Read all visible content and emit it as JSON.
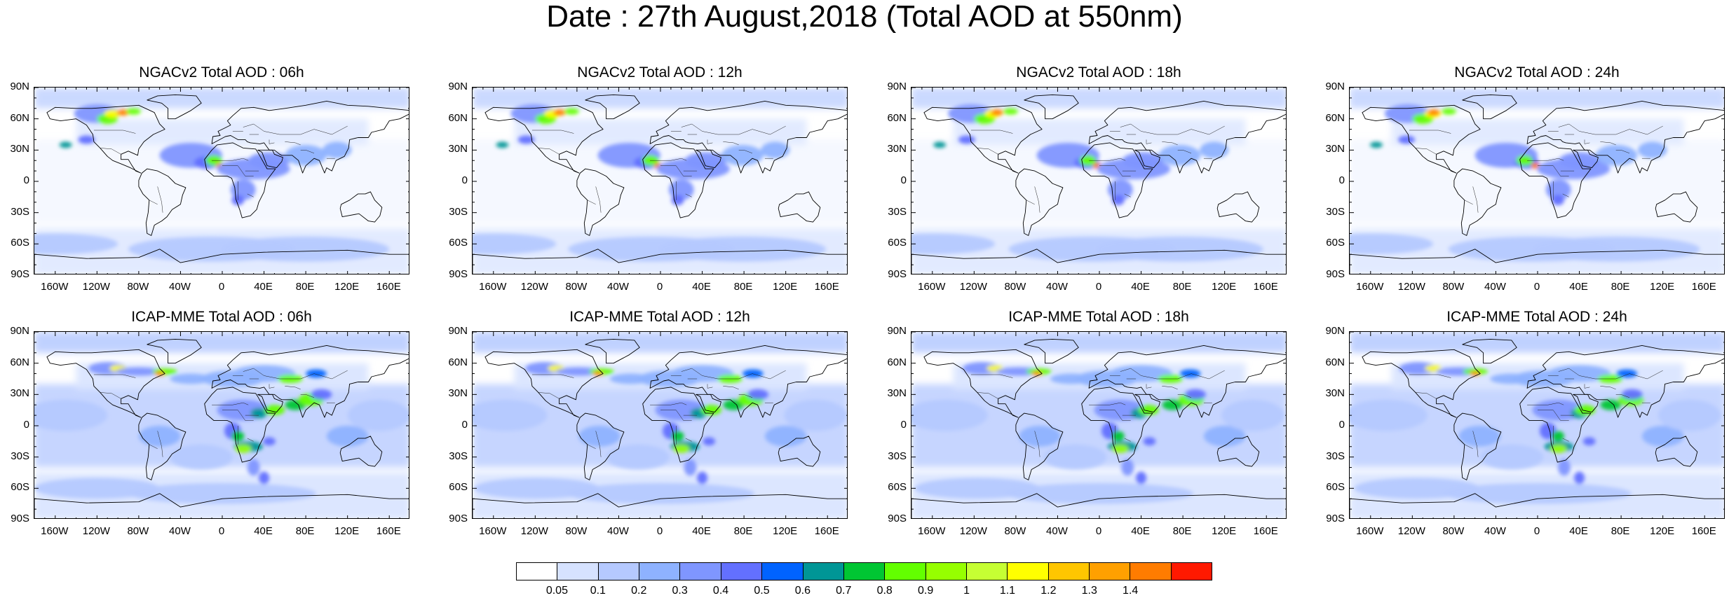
{
  "title": "Date : 27th August,2018 (Total AOD at 550nm)",
  "lat_labels": [
    "90N",
    "60N",
    "30N",
    "0",
    "30S",
    "60S",
    "90S"
  ],
  "lon_labels": [
    "160W",
    "120W",
    "80W",
    "40W",
    "0",
    "40E",
    "80E",
    "120E",
    "160E"
  ],
  "panels": [
    {
      "title": "NGACv2 Total AOD : 06h"
    },
    {
      "title": "NGACv2 Total AOD : 12h"
    },
    {
      "title": "NGACv2 Total AOD : 18h"
    },
    {
      "title": "NGACv2 Total AOD : 24h"
    },
    {
      "title": "ICAP-MME Total AOD : 06h"
    },
    {
      "title": "ICAP-MME Total AOD : 12h"
    },
    {
      "title": "ICAP-MME Total AOD : 18h"
    },
    {
      "title": "ICAP-MME Total AOD : 24h"
    }
  ],
  "colorbar": {
    "colors": [
      "#ffffff",
      "#d6e2ff",
      "#b5c9ff",
      "#8eb2ff",
      "#7f96ff",
      "#6370ff",
      "#0063ff",
      "#009696",
      "#00c633",
      "#63ff00",
      "#96ff00",
      "#c6ff33",
      "#ffff00",
      "#ffc600",
      "#ffa000",
      "#ff7c00",
      "#ff1900"
    ],
    "labels": [
      "0.05",
      "0.1",
      "0.2",
      "0.3",
      "0.4",
      "0.5",
      "0.6",
      "0.7",
      "0.8",
      "0.9",
      "1",
      "1.1",
      "1.2",
      "1.3",
      "1.4"
    ]
  }
}
